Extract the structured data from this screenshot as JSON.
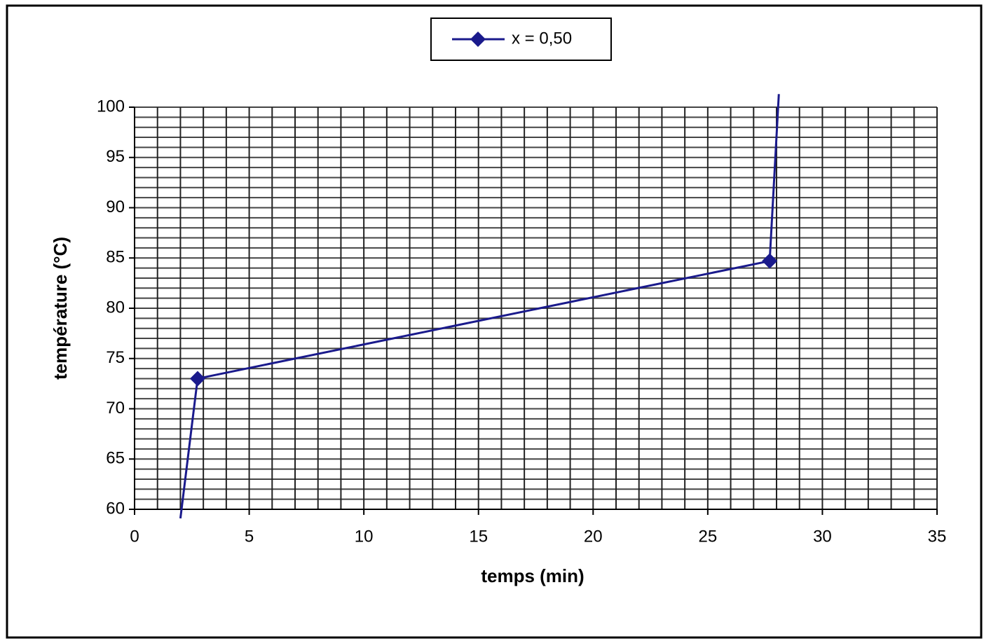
{
  "chart_data": {
    "type": "line",
    "xlabel": "temps (min)",
    "ylabel": "température (°C)",
    "x": [
      2.0,
      2.75,
      27.7,
      28.1
    ],
    "series": [
      {
        "name": "x = 0,50",
        "color": "#1a1a8c",
        "values": [
          59.1,
          73.0,
          84.7,
          101.3
        ]
      }
    ],
    "xlim": [
      0,
      35
    ],
    "xticks": [
      0,
      5,
      10,
      15,
      20,
      25,
      30,
      35
    ],
    "ylim": [
      60,
      100
    ],
    "yticks": [
      60,
      65,
      70,
      75,
      80,
      85,
      90,
      95,
      100
    ],
    "x_minor_ticks": [
      0,
      1,
      2,
      3,
      4,
      5,
      6,
      7,
      8,
      9,
      10,
      11,
      12,
      13,
      14,
      15,
      16,
      17,
      18,
      19,
      20,
      21,
      22,
      23,
      24,
      25,
      26,
      27,
      28,
      29,
      30,
      31,
      32,
      33,
      34,
      35
    ],
    "y_minor_ticks": [
      60,
      61,
      62,
      63,
      64,
      65,
      66,
      67,
      68,
      69,
      70,
      71,
      72,
      73,
      74,
      75,
      76,
      77,
      78,
      79,
      80,
      81,
      82,
      83,
      84,
      85,
      86,
      87,
      88,
      89,
      90,
      91,
      92,
      93,
      94,
      95,
      96,
      97,
      98,
      99,
      100
    ],
    "grid": true,
    "legend": "top"
  }
}
